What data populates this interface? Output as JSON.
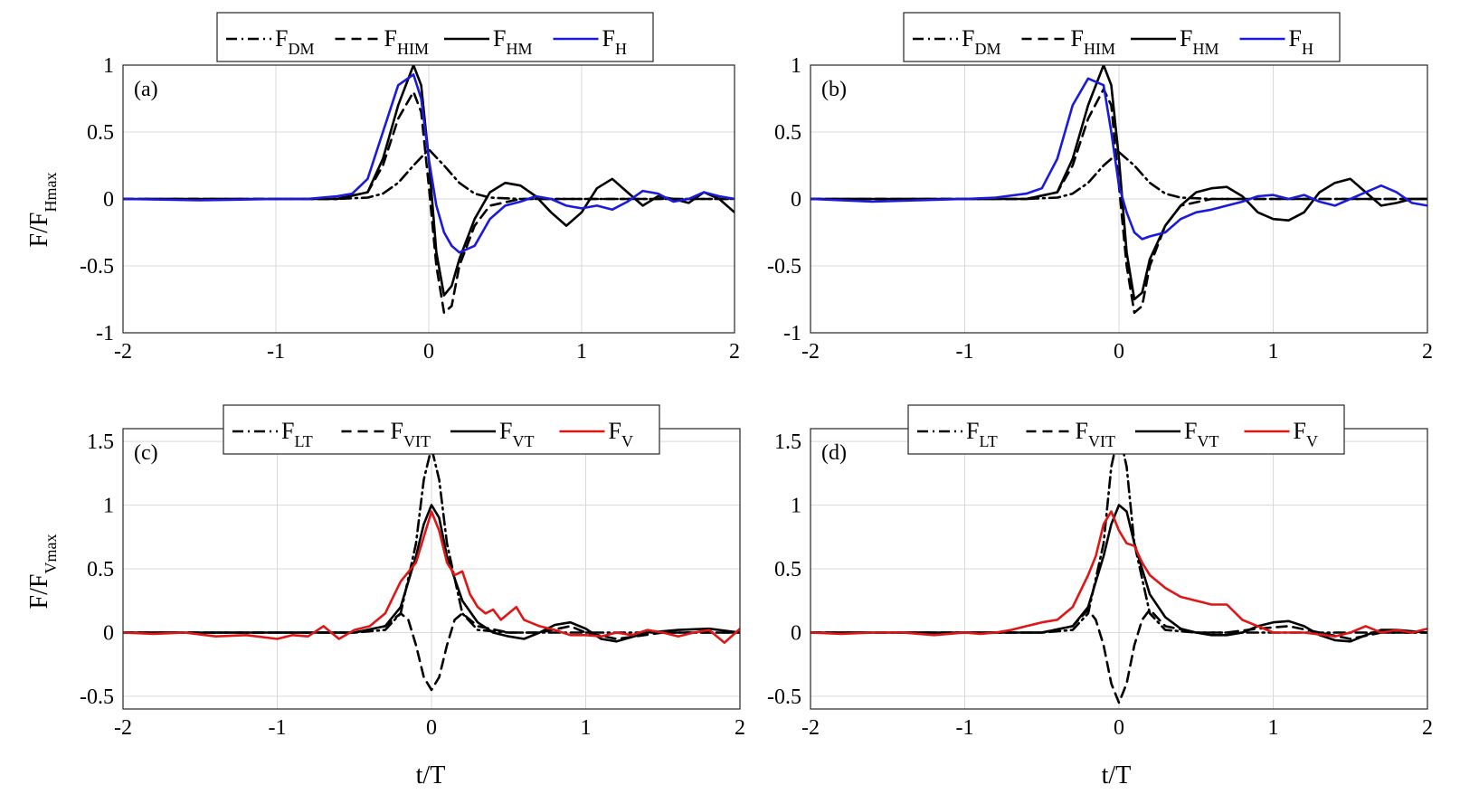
{
  "figure": {
    "ylabel_top_main": "F/F",
    "ylabel_top_sub": "Hmax",
    "ylabel_bottom_main": "F/F",
    "ylabel_bottom_sub": "Vmax",
    "xlabel": "t/T"
  },
  "chart_data": [
    {
      "type": "line",
      "panel": "(a)",
      "xlim": [
        -2,
        2
      ],
      "ylim": [
        -1,
        1
      ],
      "xticks": [
        "-2",
        "-1",
        "0",
        "1",
        "2"
      ],
      "yticks": [
        "-1",
        "-0.5",
        "0",
        "0.5",
        "1"
      ],
      "xlabel": "",
      "ylabel": "F/FHmax",
      "legend": [
        {
          "main": "F",
          "sub": "DM",
          "style": "dashdot",
          "color": "#000000"
        },
        {
          "main": "F",
          "sub": "HIM",
          "style": "dash",
          "color": "#000000"
        },
        {
          "main": "F",
          "sub": "HM",
          "style": "solid",
          "color": "#000000"
        },
        {
          "main": "F",
          "sub": "H",
          "style": "solid",
          "color": "#1a1adc"
        }
      ],
      "series": [
        {
          "name": "F_DM",
          "style": "dashdot",
          "color": "#000000",
          "x": [
            -2,
            -0.6,
            -0.4,
            -0.3,
            -0.2,
            -0.1,
            0,
            0.1,
            0.2,
            0.3,
            0.4,
            0.6,
            2
          ],
          "y": [
            0,
            0,
            0.01,
            0.04,
            0.12,
            0.25,
            0.37,
            0.25,
            0.12,
            0.04,
            0.01,
            0,
            0
          ]
        },
        {
          "name": "F_HIM",
          "style": "dash",
          "color": "#000000",
          "x": [
            -2,
            -0.6,
            -0.4,
            -0.3,
            -0.2,
            -0.1,
            -0.05,
            0,
            0.05,
            0.1,
            0.15,
            0.2,
            0.3,
            0.4,
            0.6,
            2
          ],
          "y": [
            0,
            0,
            0.05,
            0.25,
            0.6,
            0.8,
            0.65,
            0.1,
            -0.5,
            -0.85,
            -0.8,
            -0.5,
            -0.2,
            -0.05,
            0,
            0
          ]
        },
        {
          "name": "F_HM",
          "style": "solid",
          "color": "#000000",
          "x": [
            -2,
            -0.6,
            -0.4,
            -0.3,
            -0.2,
            -0.1,
            -0.05,
            0,
            0.05,
            0.1,
            0.15,
            0.2,
            0.3,
            0.4,
            0.5,
            0.6,
            0.7,
            0.8,
            0.9,
            1.0,
            1.1,
            1.2,
            1.3,
            1.4,
            1.5,
            1.6,
            1.7,
            1.8,
            1.9,
            2.0
          ],
          "y": [
            0,
            0,
            0.05,
            0.3,
            0.7,
            1.0,
            0.85,
            0.3,
            -0.4,
            -0.72,
            -0.65,
            -0.45,
            -0.15,
            0.05,
            0.12,
            0.1,
            0.02,
            -0.1,
            -0.2,
            -0.1,
            0.08,
            0.15,
            0.05,
            -0.05,
            0.02,
            0.0,
            -0.03,
            0.05,
            0.0,
            -0.1
          ]
        },
        {
          "name": "F_H",
          "style": "solid",
          "color": "#1a1adc",
          "x": [
            -2,
            -1.5,
            -1.0,
            -0.8,
            -0.6,
            -0.5,
            -0.4,
            -0.3,
            -0.2,
            -0.1,
            -0.05,
            0,
            0.05,
            0.1,
            0.15,
            0.2,
            0.3,
            0.4,
            0.5,
            0.6,
            0.7,
            0.8,
            0.9,
            1.0,
            1.1,
            1.2,
            1.3,
            1.4,
            1.5,
            1.6,
            1.7,
            1.8,
            1.9,
            2.0
          ],
          "y": [
            0,
            -0.01,
            0,
            0.0,
            0.02,
            0.04,
            0.15,
            0.5,
            0.85,
            0.93,
            0.75,
            0.3,
            -0.05,
            -0.25,
            -0.35,
            -0.4,
            -0.35,
            -0.15,
            -0.05,
            -0.02,
            0.02,
            0.0,
            -0.05,
            -0.07,
            -0.05,
            -0.08,
            -0.02,
            0.06,
            0.04,
            -0.02,
            0.0,
            0.05,
            0.02,
            0.0
          ]
        }
      ]
    },
    {
      "type": "line",
      "panel": "(b)",
      "xlim": [
        -2,
        2
      ],
      "ylim": [
        -1,
        1
      ],
      "xticks": [
        "-2",
        "-1",
        "0",
        "1",
        "2"
      ],
      "yticks": [
        "-1",
        "-0.5",
        "0",
        "0.5",
        "1"
      ],
      "xlabel": "",
      "ylabel": "",
      "legend": [
        {
          "main": "F",
          "sub": "DM",
          "style": "dashdot",
          "color": "#000000"
        },
        {
          "main": "F",
          "sub": "HIM",
          "style": "dash",
          "color": "#000000"
        },
        {
          "main": "F",
          "sub": "HM",
          "style": "solid",
          "color": "#000000"
        },
        {
          "main": "F",
          "sub": "H",
          "style": "solid",
          "color": "#1a1adc"
        }
      ],
      "series": [
        {
          "name": "F_DM",
          "style": "dashdot",
          "color": "#000000",
          "x": [
            -2,
            -0.6,
            -0.4,
            -0.3,
            -0.2,
            -0.1,
            0,
            0.1,
            0.2,
            0.3,
            0.4,
            0.6,
            2
          ],
          "y": [
            0,
            0,
            0.01,
            0.04,
            0.12,
            0.25,
            0.35,
            0.25,
            0.12,
            0.04,
            0.01,
            0,
            0
          ]
        },
        {
          "name": "F_HIM",
          "style": "dash",
          "color": "#000000",
          "x": [
            -2,
            -0.6,
            -0.4,
            -0.3,
            -0.2,
            -0.1,
            -0.05,
            0,
            0.05,
            0.1,
            0.15,
            0.2,
            0.3,
            0.4,
            0.6,
            2
          ],
          "y": [
            0,
            0,
            0.05,
            0.25,
            0.6,
            0.82,
            0.7,
            0.1,
            -0.5,
            -0.85,
            -0.8,
            -0.5,
            -0.2,
            -0.05,
            0,
            0
          ]
        },
        {
          "name": "F_HM",
          "style": "solid",
          "color": "#000000",
          "x": [
            -2,
            -0.6,
            -0.4,
            -0.3,
            -0.2,
            -0.1,
            -0.05,
            0,
            0.05,
            0.1,
            0.15,
            0.2,
            0.3,
            0.4,
            0.5,
            0.6,
            0.7,
            0.8,
            0.9,
            1.0,
            1.1,
            1.2,
            1.3,
            1.4,
            1.5,
            1.6,
            1.7,
            1.8,
            1.9,
            2.0
          ],
          "y": [
            0,
            0,
            0.05,
            0.3,
            0.7,
            1.0,
            0.85,
            0.3,
            -0.4,
            -0.75,
            -0.7,
            -0.45,
            -0.2,
            -0.05,
            0.05,
            0.08,
            0.09,
            0.02,
            -0.1,
            -0.15,
            -0.16,
            -0.1,
            0.05,
            0.12,
            0.15,
            0.05,
            -0.05,
            -0.03,
            0.0,
            0.0
          ]
        },
        {
          "name": "F_H",
          "style": "solid",
          "color": "#1a1adc",
          "x": [
            -2,
            -1.6,
            -1.3,
            -1.0,
            -0.8,
            -0.6,
            -0.5,
            -0.4,
            -0.3,
            -0.2,
            -0.1,
            -0.05,
            0,
            0.05,
            0.1,
            0.15,
            0.2,
            0.3,
            0.4,
            0.5,
            0.6,
            0.7,
            0.8,
            0.9,
            1.0,
            1.1,
            1.2,
            1.3,
            1.4,
            1.5,
            1.6,
            1.7,
            1.8,
            1.9,
            2.0
          ],
          "y": [
            0,
            -0.02,
            -0.01,
            0,
            0.01,
            0.04,
            0.08,
            0.3,
            0.7,
            0.9,
            0.85,
            0.5,
            0.1,
            -0.1,
            -0.25,
            -0.3,
            -0.28,
            -0.25,
            -0.15,
            -0.1,
            -0.08,
            -0.05,
            -0.02,
            0.02,
            0.03,
            0.0,
            0.03,
            -0.02,
            -0.05,
            0.0,
            0.05,
            0.1,
            0.05,
            -0.03,
            -0.05
          ]
        }
      ]
    },
    {
      "type": "line",
      "panel": "(c)",
      "xlim": [
        -2,
        2
      ],
      "ylim": [
        -0.6,
        1.6
      ],
      "xticks": [
        "-2",
        "-1",
        "0",
        "1",
        "2"
      ],
      "yticks": [
        "-0.5",
        "0",
        "0.5",
        "1",
        "1.5"
      ],
      "xlabel": "t/T",
      "ylabel": "F/FVmax",
      "legend": [
        {
          "main": "F",
          "sub": "LT",
          "style": "dashdot",
          "color": "#000000"
        },
        {
          "main": "F",
          "sub": "VIT",
          "style": "dash",
          "color": "#000000"
        },
        {
          "main": "F",
          "sub": "VT",
          "style": "solid",
          "color": "#000000"
        },
        {
          "main": "F",
          "sub": "V",
          "style": "solid",
          "color": "#e01515"
        }
      ],
      "series": [
        {
          "name": "F_LT",
          "style": "dashdot",
          "color": "#000000",
          "x": [
            -2,
            -0.5,
            -0.3,
            -0.2,
            -0.1,
            -0.05,
            0,
            0.05,
            0.1,
            0.2,
            0.3,
            0.5,
            2
          ],
          "y": [
            0,
            0,
            0.02,
            0.15,
            0.7,
            1.2,
            1.45,
            1.2,
            0.7,
            0.15,
            0.02,
            0,
            0
          ]
        },
        {
          "name": "F_VIT",
          "style": "dash",
          "color": "#000000",
          "x": [
            -2,
            -0.5,
            -0.3,
            -0.2,
            -0.15,
            -0.1,
            -0.05,
            0,
            0.05,
            0.1,
            0.15,
            0.2,
            0.3,
            0.5,
            0.7,
            0.9,
            1.0,
            1.2,
            1.5,
            2
          ],
          "y": [
            0,
            0,
            0.05,
            0.15,
            0.1,
            -0.1,
            -0.35,
            -0.45,
            -0.35,
            -0.1,
            0.1,
            0.15,
            0.05,
            0.0,
            0.0,
            0.05,
            0.0,
            -0.05,
            0.0,
            0
          ]
        },
        {
          "name": "F_VT",
          "style": "solid",
          "color": "#000000",
          "x": [
            -2,
            -0.5,
            -0.3,
            -0.2,
            -0.1,
            -0.05,
            0,
            0.05,
            0.1,
            0.2,
            0.3,
            0.4,
            0.5,
            0.6,
            0.7,
            0.8,
            0.9,
            1.0,
            1.1,
            1.2,
            1.4,
            1.6,
            1.8,
            2.0
          ],
          "y": [
            0,
            0,
            0.05,
            0.2,
            0.6,
            0.85,
            1.0,
            0.9,
            0.6,
            0.25,
            0.08,
            0.0,
            -0.03,
            -0.05,
            0.0,
            0.06,
            0.08,
            0.03,
            -0.05,
            -0.07,
            0.0,
            0.02,
            0.03,
            0.0
          ]
        },
        {
          "name": "F_V",
          "style": "solid",
          "color": "#e01515",
          "x": [
            -2,
            -1.8,
            -1.6,
            -1.4,
            -1.2,
            -1.0,
            -0.9,
            -0.8,
            -0.7,
            -0.6,
            -0.5,
            -0.4,
            -0.3,
            -0.2,
            -0.1,
            -0.05,
            0,
            0.05,
            0.1,
            0.15,
            0.2,
            0.25,
            0.3,
            0.35,
            0.4,
            0.45,
            0.5,
            0.55,
            0.6,
            0.7,
            0.8,
            0.9,
            1.0,
            1.1,
            1.2,
            1.3,
            1.4,
            1.5,
            1.6,
            1.7,
            1.8,
            1.9,
            2.0
          ],
          "y": [
            0,
            -0.01,
            0.0,
            -0.03,
            -0.02,
            -0.05,
            -0.02,
            -0.03,
            0.05,
            -0.05,
            0.02,
            0.05,
            0.15,
            0.4,
            0.55,
            0.75,
            0.95,
            0.8,
            0.55,
            0.45,
            0.48,
            0.3,
            0.2,
            0.15,
            0.18,
            0.1,
            0.15,
            0.2,
            0.1,
            0.05,
            0.02,
            -0.02,
            -0.02,
            -0.03,
            0.0,
            -0.02,
            0.02,
            0.0,
            -0.03,
            0.0,
            0.02,
            -0.08,
            0.03
          ]
        }
      ]
    },
    {
      "type": "line",
      "panel": "(d)",
      "xlim": [
        -2,
        2
      ],
      "ylim": [
        -0.6,
        1.6
      ],
      "xticks": [
        "-2",
        "-1",
        "0",
        "1",
        "2"
      ],
      "yticks": [
        "-0.5",
        "0",
        "0.5",
        "1",
        "1.5"
      ],
      "xlabel": "t/T",
      "ylabel": "",
      "legend": [
        {
          "main": "F",
          "sub": "LT",
          "style": "dashdot",
          "color": "#000000"
        },
        {
          "main": "F",
          "sub": "VIT",
          "style": "dash",
          "color": "#000000"
        },
        {
          "main": "F",
          "sub": "VT",
          "style": "solid",
          "color": "#000000"
        },
        {
          "main": "F",
          "sub": "V",
          "style": "solid",
          "color": "#e01515"
        }
      ],
      "series": [
        {
          "name": "F_LT",
          "style": "dashdot",
          "color": "#000000",
          "x": [
            -2,
            -0.5,
            -0.3,
            -0.2,
            -0.1,
            -0.05,
            0,
            0.05,
            0.1,
            0.2,
            0.3,
            0.5,
            2
          ],
          "y": [
            0,
            0,
            0.02,
            0.15,
            0.7,
            1.3,
            1.58,
            1.3,
            0.7,
            0.15,
            0.02,
            0,
            0
          ]
        },
        {
          "name": "F_VIT",
          "style": "dash",
          "color": "#000000",
          "x": [
            -2,
            -0.5,
            -0.3,
            -0.2,
            -0.15,
            -0.1,
            -0.05,
            0,
            0.05,
            0.1,
            0.15,
            0.2,
            0.3,
            0.5,
            0.7,
            0.9,
            1.1,
            1.3,
            1.5,
            1.7,
            2
          ],
          "y": [
            0,
            0,
            0.05,
            0.18,
            0.1,
            -0.1,
            -0.4,
            -0.55,
            -0.4,
            -0.1,
            0.1,
            0.18,
            0.05,
            0.0,
            0.0,
            0.03,
            0.05,
            0.0,
            -0.05,
            0.0,
            0
          ]
        },
        {
          "name": "F_VT",
          "style": "solid",
          "color": "#000000",
          "x": [
            -2,
            -0.5,
            -0.3,
            -0.2,
            -0.1,
            -0.05,
            0,
            0.05,
            0.1,
            0.2,
            0.3,
            0.4,
            0.5,
            0.6,
            0.7,
            0.8,
            0.9,
            1.0,
            1.1,
            1.2,
            1.3,
            1.4,
            1.5,
            1.6,
            1.7,
            1.8,
            2.0
          ],
          "y": [
            0,
            0,
            0.05,
            0.2,
            0.6,
            0.85,
            1.0,
            0.95,
            0.7,
            0.3,
            0.12,
            0.03,
            0.0,
            -0.02,
            -0.02,
            0.0,
            0.05,
            0.08,
            0.09,
            0.05,
            -0.02,
            -0.06,
            -0.07,
            -0.02,
            0.02,
            0.02,
            0.0
          ]
        },
        {
          "name": "F_V",
          "style": "solid",
          "color": "#e01515",
          "x": [
            -2,
            -1.8,
            -1.6,
            -1.4,
            -1.2,
            -1.0,
            -0.9,
            -0.8,
            -0.7,
            -0.6,
            -0.5,
            -0.4,
            -0.3,
            -0.2,
            -0.15,
            -0.1,
            -0.05,
            0,
            0.05,
            0.1,
            0.15,
            0.2,
            0.3,
            0.4,
            0.5,
            0.6,
            0.7,
            0.8,
            0.9,
            1.0,
            1.2,
            1.4,
            1.5,
            1.6,
            1.7,
            1.8,
            1.9,
            2.0
          ],
          "y": [
            0,
            -0.01,
            0.0,
            0.0,
            -0.02,
            0.0,
            -0.01,
            0.0,
            0.02,
            0.05,
            0.08,
            0.1,
            0.2,
            0.45,
            0.6,
            0.85,
            0.95,
            0.8,
            0.7,
            0.68,
            0.55,
            0.45,
            0.35,
            0.28,
            0.25,
            0.22,
            0.22,
            0.1,
            0.05,
            0.0,
            0.0,
            -0.03,
            0.0,
            0.05,
            0.0,
            0.02,
            0.0,
            0.03
          ]
        }
      ]
    }
  ]
}
